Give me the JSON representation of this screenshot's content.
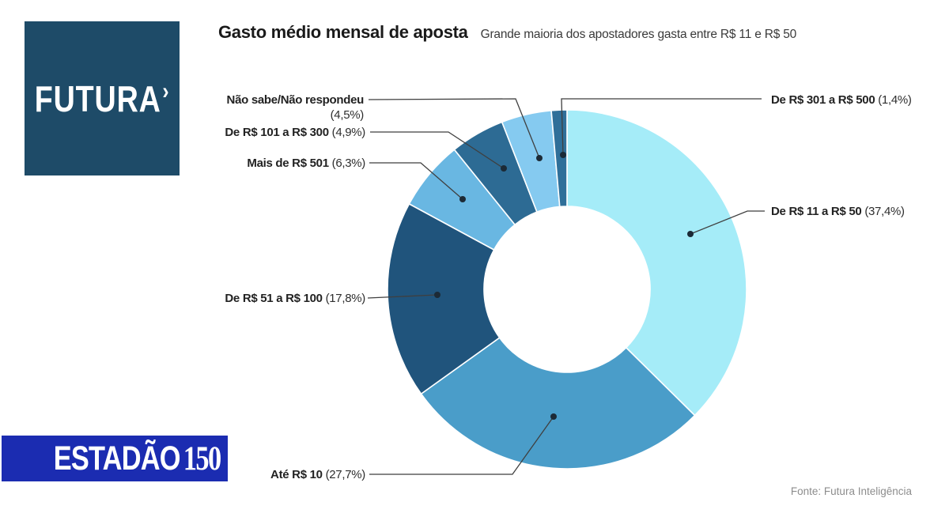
{
  "branding": {
    "futura_logo_text": "FUTURA",
    "futura_logo_mark": "›",
    "futura_bg_color": "#1e4b68",
    "estadao_logo_text": "ESTADÃO",
    "estadao_logo_number": "150",
    "estadao_bg_color": "#1b2cb1"
  },
  "chart_data": {
    "type": "pie",
    "variant": "donut",
    "title": "Gasto médio mensal de aposta",
    "subtitle": "Grande maioria dos apostadores gasta entre R$ 11 e R$ 50",
    "source": "Fonte: Futura Inteligência",
    "unit": "%",
    "start_angle_deg": 0,
    "direction": "clockwise",
    "legend_position": "callout-labels",
    "segments": [
      {
        "label": "De R$ 11 a R$ 50",
        "value": 37.4,
        "value_label": "(37,4%)",
        "color": "#a5ecf8"
      },
      {
        "label": "Até R$ 10",
        "value": 27.7,
        "value_label": "(27,7%)",
        "color": "#4a9dc9"
      },
      {
        "label": "De R$ 51 a R$ 100",
        "value": 17.8,
        "value_label": "(17,8%)",
        "color": "#20547c"
      },
      {
        "label": "Mais de R$ 501",
        "value": 6.3,
        "value_label": "(6,3%)",
        "color": "#69b7e2"
      },
      {
        "label": "De R$ 101 a R$ 300",
        "value": 4.9,
        "value_label": "(4,9%)",
        "color": "#2d6b94"
      },
      {
        "label": "Não sabe/Não respondeu",
        "value": 4.5,
        "value_label": "(4,5%)",
        "color": "#85caf0"
      },
      {
        "label": "De R$ 301 a R$ 500",
        "value": 1.4,
        "value_label": "(1,4%)",
        "color": "#2f6f99"
      }
    ],
    "colors": {
      "leader_line": "#3f3f3f",
      "leader_dot": "#1c2a36",
      "slice_border": "#ffffff"
    }
  }
}
